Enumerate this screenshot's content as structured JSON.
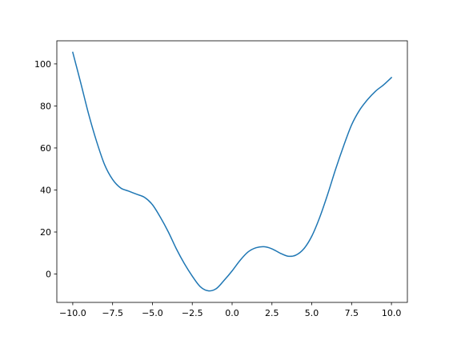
{
  "chart_data": {
    "type": "line",
    "title": "",
    "xlabel": "",
    "ylabel": "",
    "xlim": [
      -11.0,
      11.0
    ],
    "ylim": [
      -13.5,
      111.0
    ],
    "grid": false,
    "x_ticks": [
      -10.0,
      -7.5,
      -5.0,
      -2.5,
      0.0,
      2.5,
      5.0,
      7.5,
      10.0
    ],
    "x_tick_labels": [
      "−10.0",
      "−7.5",
      "−5.0",
      "−2.5",
      "0.0",
      "2.5",
      "5.0",
      "7.5",
      "10.0"
    ],
    "y_ticks": [
      0,
      20,
      40,
      60,
      80,
      100
    ],
    "y_tick_labels": [
      "0",
      "20",
      "40",
      "60",
      "80",
      "100"
    ],
    "series": [
      {
        "color": "#1f77b4",
        "x": [
          -10,
          -9.5,
          -9,
          -8.5,
          -8,
          -7.5,
          -7,
          -6.5,
          -6,
          -5.5,
          -5,
          -4.5,
          -4,
          -3.5,
          -3,
          -2.5,
          -2,
          -1.5,
          -1,
          -0.5,
          0,
          0.5,
          1,
          1.5,
          2,
          2.5,
          3,
          3.5,
          4,
          4.5,
          5,
          5.5,
          6,
          6.5,
          7,
          7.5,
          8,
          8.5,
          9,
          9.5,
          10
        ],
        "y": [
          105.5,
          91,
          76,
          63,
          52,
          45,
          41,
          39.5,
          38,
          36.5,
          33,
          27,
          20,
          12,
          5,
          -1,
          -6,
          -8,
          -7,
          -3,
          1.5,
          6.5,
          10.5,
          12.5,
          13,
          12,
          10,
          8.5,
          9,
          12,
          18,
          27,
          38,
          50,
          61,
          71,
          78,
          83,
          87,
          90,
          93.5
        ]
      }
    ]
  }
}
